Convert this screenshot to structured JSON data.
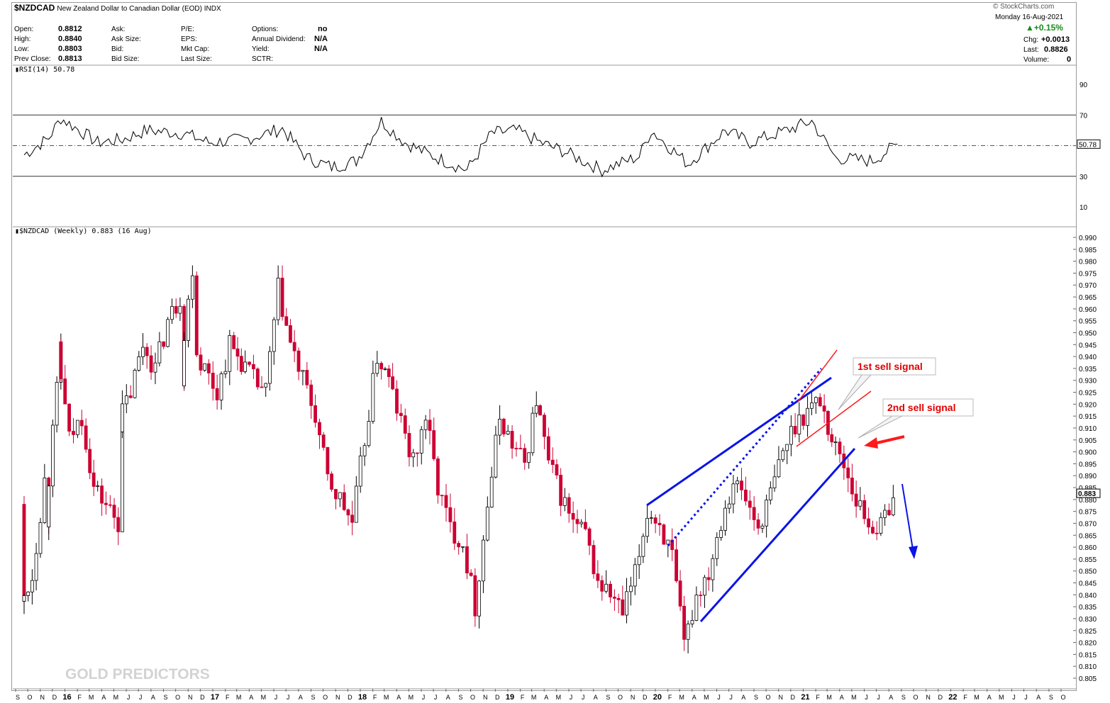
{
  "header": {
    "symbol": "$NZDCAD",
    "name": "New Zealand Dollar to Canadian Dollar (EOD) INDX",
    "date": "Monday  16-Aug-2021",
    "pct_change": "+0.15%",
    "chg_label": "Chg:",
    "chg_value": "+0.0013",
    "last_label": "Last:",
    "last_value": "0.8826",
    "volume_label": "Volume:",
    "volume_value": "0",
    "credit": "© StockCharts.com",
    "quote": [
      {
        "label": "Open:",
        "value": "0.8812"
      },
      {
        "label": "High:",
        "value": "0.8840"
      },
      {
        "label": "Low:",
        "value": "0.8803"
      },
      {
        "label": "Prev Close:",
        "value": "0.8813"
      }
    ],
    "col2": [
      "Ask:",
      "Ask Size:",
      "Bid:",
      "Bid Size:"
    ],
    "col3": [
      "P/E:",
      "EPS:",
      "Mkt Cap:",
      "Last Size:"
    ],
    "col4": [
      {
        "label": "Options:",
        "value": "no"
      },
      {
        "label": "Annual Dividend:",
        "value": "N/A"
      },
      {
        "label": "Yield:",
        "value": "N/A"
      },
      {
        "label": "SCTR:",
        "value": ""
      }
    ]
  },
  "rsi_panel": {
    "label": "RSI(14) 50.78",
    "current_tag": "50.78",
    "ticks": [
      "90",
      "70",
      "50",
      "30",
      "10"
    ]
  },
  "price_panel": {
    "label": "$NZDCAD (Weekly) 0.883 (16 Aug)",
    "current_tag": "0.883",
    "ticks": [
      "0.990",
      "0.985",
      "0.980",
      "0.975",
      "0.970",
      "0.965",
      "0.960",
      "0.955",
      "0.950",
      "0.945",
      "0.940",
      "0.935",
      "0.930",
      "0.925",
      "0.920",
      "0.915",
      "0.910",
      "0.905",
      "0.900",
      "0.895",
      "0.890",
      "0.885",
      "0.880",
      "0.875",
      "0.870",
      "0.865",
      "0.860",
      "0.855",
      "0.850",
      "0.845",
      "0.840",
      "0.835",
      "0.830",
      "0.825",
      "0.820",
      "0.815",
      "0.810",
      "0.805"
    ]
  },
  "annotations": {
    "first_sell": "1st sell signal",
    "second_sell": "2nd sell signal",
    "watermark": "GOLD PREDICTORS"
  },
  "x_axis_labels": [
    "S",
    "O",
    "N",
    "D",
    "16",
    "F",
    "M",
    "A",
    "M",
    "J",
    "J",
    "A",
    "S",
    "O",
    "N",
    "D",
    "17",
    "F",
    "M",
    "A",
    "M",
    "J",
    "J",
    "A",
    "S",
    "O",
    "N",
    "D",
    "18",
    "F",
    "M",
    "A",
    "M",
    "J",
    "J",
    "A",
    "S",
    "O",
    "N",
    "D",
    "19",
    "F",
    "M",
    "A",
    "M",
    "J",
    "J",
    "A",
    "S",
    "O",
    "N",
    "D",
    "20",
    "F",
    "M",
    "A",
    "M",
    "J",
    "J",
    "A",
    "S",
    "O",
    "N",
    "D",
    "21",
    "F",
    "M",
    "A",
    "M",
    "J",
    "J",
    "A",
    "S",
    "O",
    "N",
    "D",
    "22",
    "F",
    "M",
    "A",
    "M",
    "J",
    "J",
    "A",
    "S",
    "O"
  ],
  "colors": {
    "up": "#000000",
    "down": "#cc0033",
    "rsi_line": "#000000",
    "trend_blue": "#0a14e6",
    "trend_red": "#ff1a1a",
    "tag_red": "#e00000"
  },
  "chart_data": {
    "type": "candlestick",
    "title": "$NZDCAD (Weekly) 0.883 (16 Aug)",
    "ylim": [
      0.802,
      0.991
    ],
    "x_range": [
      "2015-09",
      "2022-10"
    ],
    "price_path": [
      {
        "d": "2015-09",
        "p": 0.878
      },
      {
        "d": "2015-09",
        "p": 0.835
      },
      {
        "d": "2015-10",
        "p": 0.848
      },
      {
        "d": "2015-11",
        "p": 0.888
      },
      {
        "d": "2015-11",
        "p": 0.872
      },
      {
        "d": "2015-12",
        "p": 0.925
      },
      {
        "d": "2015-12",
        "p": 0.945
      },
      {
        "d": "2016-01",
        "p": 0.905
      },
      {
        "d": "2016-02",
        "p": 0.915
      },
      {
        "d": "2016-03",
        "p": 0.885
      },
      {
        "d": "2016-04",
        "p": 0.878
      },
      {
        "d": "2016-05",
        "p": 0.87
      },
      {
        "d": "2016-05",
        "p": 0.912
      },
      {
        "d": "2016-06",
        "p": 0.925
      },
      {
        "d": "2016-07",
        "p": 0.945
      },
      {
        "d": "2016-08",
        "p": 0.935
      },
      {
        "d": "2016-09",
        "p": 0.955
      },
      {
        "d": "2016-10",
        "p": 0.965
      },
      {
        "d": "2016-10",
        "p": 0.932
      },
      {
        "d": "2016-11",
        "p": 0.978
      },
      {
        "d": "2016-11",
        "p": 0.945
      },
      {
        "d": "2016-12",
        "p": 0.935
      },
      {
        "d": "2017-01",
        "p": 0.925
      },
      {
        "d": "2017-02",
        "p": 0.945
      },
      {
        "d": "2017-03",
        "p": 0.938
      },
      {
        "d": "2017-04",
        "p": 0.93
      },
      {
        "d": "2017-05",
        "p": 0.925
      },
      {
        "d": "2017-06",
        "p": 0.968
      },
      {
        "d": "2017-07",
        "p": 0.945
      },
      {
        "d": "2017-08",
        "p": 0.93
      },
      {
        "d": "2017-09",
        "p": 0.915
      },
      {
        "d": "2017-10",
        "p": 0.888
      },
      {
        "d": "2017-11",
        "p": 0.88
      },
      {
        "d": "2017-12",
        "p": 0.87
      },
      {
        "d": "2018-01",
        "p": 0.905
      },
      {
        "d": "2018-02",
        "p": 0.94
      },
      {
        "d": "2018-03",
        "p": 0.93
      },
      {
        "d": "2018-04",
        "p": 0.912
      },
      {
        "d": "2018-05",
        "p": 0.895
      },
      {
        "d": "2018-06",
        "p": 0.915
      },
      {
        "d": "2018-07",
        "p": 0.885
      },
      {
        "d": "2018-08",
        "p": 0.868
      },
      {
        "d": "2018-09",
        "p": 0.862
      },
      {
        "d": "2018-10",
        "p": 0.835
      },
      {
        "d": "2018-11",
        "p": 0.878
      },
      {
        "d": "2018-12",
        "p": 0.915
      },
      {
        "d": "2019-01",
        "p": 0.903
      },
      {
        "d": "2019-02",
        "p": 0.895
      },
      {
        "d": "2019-03",
        "p": 0.922
      },
      {
        "d": "2019-04",
        "p": 0.895
      },
      {
        "d": "2019-05",
        "p": 0.882
      },
      {
        "d": "2019-06",
        "p": 0.87
      },
      {
        "d": "2019-07",
        "p": 0.865
      },
      {
        "d": "2019-08",
        "p": 0.845
      },
      {
        "d": "2019-09",
        "p": 0.84
      },
      {
        "d": "2019-10",
        "p": 0.832
      },
      {
        "d": "2019-11",
        "p": 0.848
      },
      {
        "d": "2019-12",
        "p": 0.875
      },
      {
        "d": "2020-01",
        "p": 0.87
      },
      {
        "d": "2020-02",
        "p": 0.855
      },
      {
        "d": "2020-03",
        "p": 0.818
      },
      {
        "d": "2020-04",
        "p": 0.84
      },
      {
        "d": "2020-05",
        "p": 0.85
      },
      {
        "d": "2020-06",
        "p": 0.872
      },
      {
        "d": "2020-07",
        "p": 0.888
      },
      {
        "d": "2020-08",
        "p": 0.88
      },
      {
        "d": "2020-09",
        "p": 0.868
      },
      {
        "d": "2020-10",
        "p": 0.882
      },
      {
        "d": "2020-11",
        "p": 0.9
      },
      {
        "d": "2020-12",
        "p": 0.912
      },
      {
        "d": "2021-01",
        "p": 0.918
      },
      {
        "d": "2021-02",
        "p": 0.922
      },
      {
        "d": "2021-03",
        "p": 0.905
      },
      {
        "d": "2021-04",
        "p": 0.895
      },
      {
        "d": "2021-05",
        "p": 0.88
      },
      {
        "d": "2021-06",
        "p": 0.87
      },
      {
        "d": "2021-07",
        "p": 0.868
      },
      {
        "d": "2021-08",
        "p": 0.883
      }
    ],
    "rsi_path": [
      {
        "d": "2015-09",
        "v": 44
      },
      {
        "d": "2015-11",
        "v": 55
      },
      {
        "d": "2015-12",
        "v": 68
      },
      {
        "d": "2016-03",
        "v": 52
      },
      {
        "d": "2016-05",
        "v": 54
      },
      {
        "d": "2016-07",
        "v": 60
      },
      {
        "d": "2016-10",
        "v": 58
      },
      {
        "d": "2016-12",
        "v": 52
      },
      {
        "d": "2017-03",
        "v": 54
      },
      {
        "d": "2017-06",
        "v": 61
      },
      {
        "d": "2017-08",
        "v": 42
      },
      {
        "d": "2017-10",
        "v": 36
      },
      {
        "d": "2017-12",
        "v": 40
      },
      {
        "d": "2018-02",
        "v": 66
      },
      {
        "d": "2018-04",
        "v": 52
      },
      {
        "d": "2018-06",
        "v": 44
      },
      {
        "d": "2018-09",
        "v": 34
      },
      {
        "d": "2018-11",
        "v": 58
      },
      {
        "d": "2019-01",
        "v": 60
      },
      {
        "d": "2019-03",
        "v": 52
      },
      {
        "d": "2019-05",
        "v": 46
      },
      {
        "d": "2019-08",
        "v": 34
      },
      {
        "d": "2019-11",
        "v": 43
      },
      {
        "d": "2019-12",
        "v": 60
      },
      {
        "d": "2020-03",
        "v": 38
      },
      {
        "d": "2020-06",
        "v": 60
      },
      {
        "d": "2020-08",
        "v": 52
      },
      {
        "d": "2020-11",
        "v": 60
      },
      {
        "d": "2021-01",
        "v": 66
      },
      {
        "d": "2021-03",
        "v": 42
      },
      {
        "d": "2021-06",
        "v": 40
      },
      {
        "d": "2021-08",
        "v": 51
      }
    ],
    "rsi_ylim": [
      0,
      100
    ],
    "rsi_levels": [
      30,
      50,
      70
    ]
  }
}
